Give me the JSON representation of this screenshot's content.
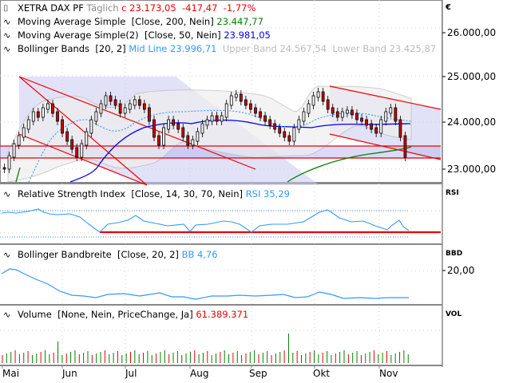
{
  "header": {
    "instrument": "XETRA DAX PF",
    "period": "Täglich",
    "close_label": "c 23.173,05",
    "change_abs": "-417,47",
    "change_pct": "-1,77%"
  },
  "indicators": {
    "ma200": {
      "label": "Moving Average Simple",
      "params": "[Close, 200, Nein]",
      "value": "23.447,77",
      "color": "#008000"
    },
    "ma50": {
      "label": "Moving Average Simple(2)",
      "params": "[Close, 50, Nein]",
      "value": "23.981,05",
      "color": "#0000ff"
    },
    "bb": {
      "label": "Bollinger Bands",
      "params": "[20, 2]",
      "mid": "Mid Line 23.996,71",
      "upper": "Upper Band 24.567,54",
      "lower": "Lower Band 23.425,87",
      "mid_color": "#3399ff",
      "band_color": "#aaaaaa"
    }
  },
  "panels": {
    "price": {
      "currency": "€",
      "ticks": [
        "26.000,00",
        "25.000,00",
        "24.000,00",
        "23.000,00"
      ]
    },
    "rsi": {
      "axis_name": "RSI",
      "label": "Relative Strength Index",
      "params": "[Close, 14, 30, 70, Nein]",
      "value": "RSI 35,29"
    },
    "bbd": {
      "axis_name": "BBD",
      "label": "Bollinger Bandbreite",
      "params": "[Close, 20, 2]",
      "value": "BB 4,76",
      "ticks": [
        "20,00"
      ]
    },
    "vol": {
      "axis_name": "VOL",
      "label": "Volume",
      "params": "[None, Nein, PriceChange, Ja]",
      "value": "61.389.371"
    }
  },
  "x_axis": {
    "months": [
      "Mai",
      "Jun",
      "Jul",
      "Aug",
      "Sep",
      "Okt",
      "Nov"
    ]
  },
  "colors": {
    "up": "#ffffff",
    "down": "#cc0000",
    "trendline": "#ff0000",
    "channel_fill": "#c8c8f0",
    "vol_up": "#008000",
    "vol_down": "#ee0000"
  },
  "chart_data": [
    {
      "type": "candlestick",
      "title": "XETRA DAX PF Täglich",
      "xlabel": "",
      "ylabel": "€",
      "ylim": [
        22600,
        26300
      ],
      "categories": [
        "Mai",
        "Jun",
        "Jul",
        "Aug",
        "Sep",
        "Okt",
        "Nov"
      ],
      "series": [
        {
          "name": "Close (approx. monthly)",
          "values": [
            23400,
            24200,
            24000,
            24200,
            23700,
            24500,
            23173
          ]
        },
        {
          "name": "MA200",
          "values": [
            22000,
            22400,
            22700,
            22900,
            23100,
            23300,
            23448
          ]
        },
        {
          "name": "MA50",
          "values": [
            21800,
            22900,
            23700,
            24050,
            24100,
            23950,
            23981
          ]
        },
        {
          "name": "BB Mid",
          "values": [
            23000,
            23900,
            24000,
            24100,
            23700,
            24200,
            23997
          ]
        }
      ],
      "annotations": [
        "horizontal support 23.470",
        "horizontal support 23.220",
        "descending channel May-Aug",
        "descending channel Oct-Nov"
      ],
      "last": {
        "close": 23173.05,
        "change": -417.47,
        "change_pct": -1.77
      }
    },
    {
      "type": "line",
      "title": "Relative Strength Index [Close, 14, 30, 70, Nein]",
      "ylim": [
        0,
        100
      ],
      "levels": [
        30,
        70
      ],
      "values": [
        62,
        64,
        65,
        60,
        50,
        45,
        38,
        48,
        52,
        50,
        40,
        52,
        55,
        50,
        42,
        72,
        74,
        60,
        55,
        50,
        45,
        58,
        35
      ],
      "last": 35.29
    },
    {
      "type": "line",
      "title": "Bollinger Bandbreite [Close, 20, 2]",
      "yticks": [
        "20,00"
      ],
      "values": [
        14,
        16,
        12,
        9,
        6,
        4,
        3,
        5,
        5,
        4,
        6,
        5,
        3,
        4,
        4,
        3,
        5,
        6,
        5,
        3,
        3,
        4,
        4.76
      ],
      "last": 4.76
    },
    {
      "type": "bar",
      "title": "Volume [None, Nein, PriceChange, Ja]",
      "last": 61389371,
      "note": "daily volume bars, green=up, red=down; spikes in mid-June and mid-September"
    }
  ]
}
